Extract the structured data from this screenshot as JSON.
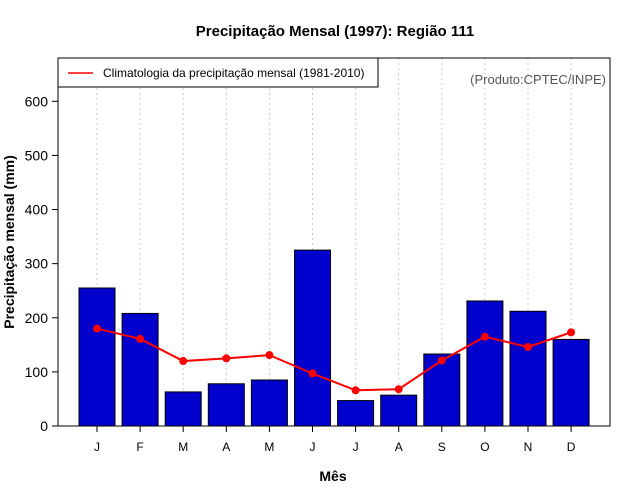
{
  "chart_data": {
    "type": "bar",
    "title": "Precipitação Mensal (1997): Região 111",
    "xlabel": "Mês",
    "ylabel": "Precipitação mensal (mm)",
    "ylim": [
      0,
      680
    ],
    "yticks": [
      0,
      100,
      200,
      300,
      400,
      500,
      600
    ],
    "grid": "vertical dotted",
    "categories": [
      "J",
      "F",
      "M",
      "A",
      "M",
      "J",
      "J",
      "A",
      "S",
      "O",
      "N",
      "D"
    ],
    "series": [
      {
        "name": "Precipitação mensal 1997",
        "kind": "bar",
        "color": "#0000cc",
        "values": [
          255,
          208,
          63,
          78,
          85,
          325,
          47,
          57,
          133,
          231,
          212,
          160
        ]
      },
      {
        "name": "Climatologia da precipitação mensal (1981-2010)",
        "kind": "line",
        "color": "#ff0000",
        "values": [
          180,
          161,
          120,
          125,
          131,
          97,
          66,
          68,
          121,
          165,
          146,
          173
        ]
      }
    ],
    "legend": {
      "position": "top-left",
      "entries": [
        "Climatologia da precipitação mensal (1981-2010)"
      ]
    },
    "credit": "(Produto:CPTEC/INPE)"
  }
}
